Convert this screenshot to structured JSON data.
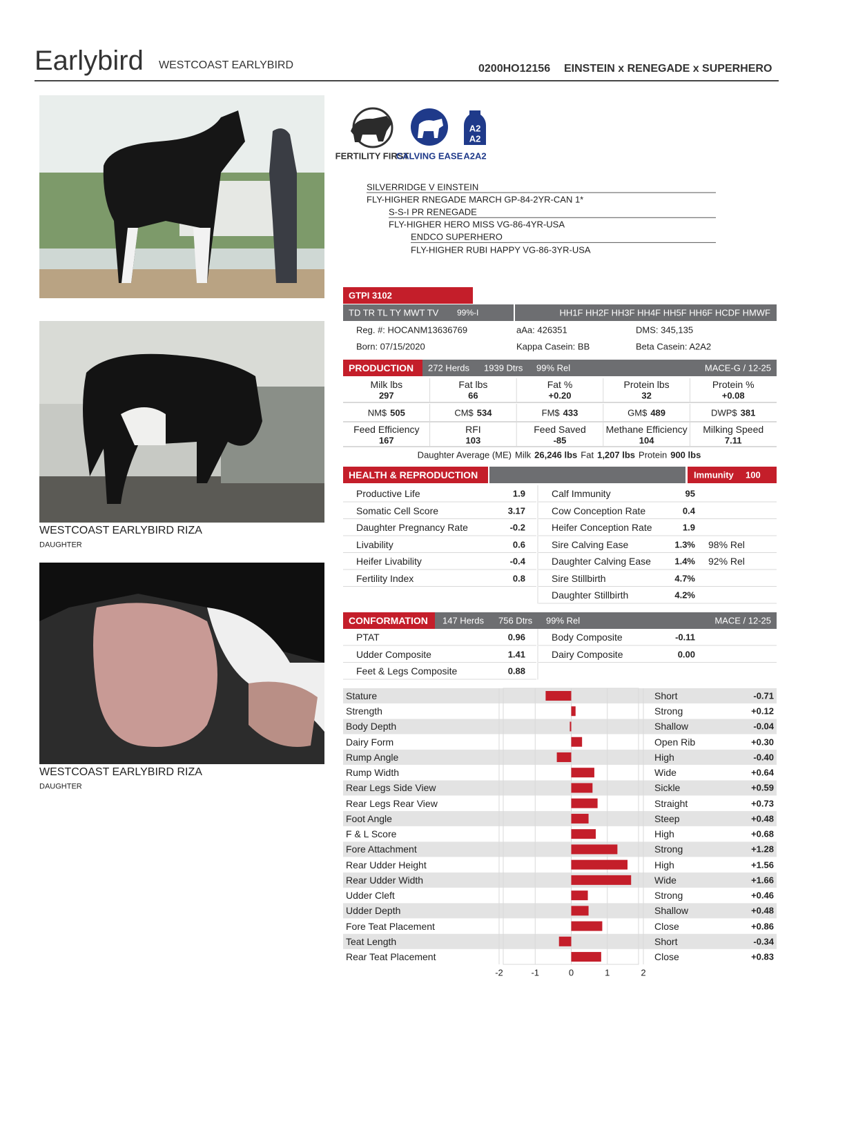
{
  "header": {
    "name": "Earlybird",
    "full_name": "WESTCOAST EARLYBIRD",
    "code": "0200HO12156",
    "pedigree": "EINSTEIN x RENEGADE x SUPERHERO"
  },
  "photos": [
    {
      "caption": "WESTCOAST EARLYBIRD RIZA",
      "subcaption": "DAUGHTER"
    },
    {
      "caption": "WESTCOAST EARLYBIRD RIZA",
      "subcaption": "DAUGHTER"
    }
  ],
  "badges": [
    {
      "label": "FERTILITY FIRST"
    },
    {
      "label": "CALVING EASE"
    },
    {
      "label": "A2A2",
      "icon_lines": [
        "A2",
        "A2"
      ]
    }
  ],
  "pedigree_lines": [
    "SILVERRIDGE V EINSTEIN",
    "FLY-HIGHER RNEGADE MARCH GP-84-2YR-CAN 1*",
    "S-S-I PR RENEGADE",
    "FLY-HIGHER HERO MISS VG-86-4YR-USA",
    "ENDCO SUPERHERO",
    "FLY-HIGHER RUBI HAPPY VG-86-3YR-USA"
  ],
  "gtpi": "GTPI 3102",
  "status_bar": {
    "traits": "TD TR TL TY MWT TV",
    "reliability": "99%-I",
    "haplotypes": "HH1F HH2F HH3F HH4F HH5F HH6F HCDF HMWF"
  },
  "info": [
    [
      "Reg. #: HOCANM13636769",
      "aAa: 426351",
      "DMS: 345,135"
    ],
    [
      "Born: 07/15/2020",
      "Kappa Casein: BB",
      "Beta Casein: A2A2"
    ]
  ],
  "production": {
    "title": "PRODUCTION",
    "herds": "272 Herds",
    "dtrs": "1939 Dtrs",
    "rel": "99% Rel",
    "source": "MACE-G / 12-25",
    "rows": [
      [
        {
          "label": "Milk lbs",
          "value": "297"
        },
        {
          "label": "Fat lbs",
          "value": "66"
        },
        {
          "label": "Fat %",
          "value": "+0.20"
        },
        {
          "label": "Protein lbs",
          "value": "32"
        },
        {
          "label": "Protein %",
          "value": "+0.08"
        }
      ],
      [
        {
          "label": "NM$",
          "value": "505"
        },
        {
          "label": "CM$",
          "value": "534"
        },
        {
          "label": "FM$",
          "value": "433"
        },
        {
          "label": "GM$",
          "value": "489"
        },
        {
          "label": "DWP$",
          "value": "381"
        }
      ],
      [
        {
          "label": "Feed Efficiency",
          "value": "167"
        },
        {
          "label": "RFI",
          "value": "103"
        },
        {
          "label": "Feed Saved",
          "value": "-85"
        },
        {
          "label": "Methane Efficiency",
          "value": "104"
        },
        {
          "label": "Milking Speed",
          "value": "7.11"
        }
      ]
    ],
    "daughter_average": {
      "label": "Daughter Average (ME)",
      "milk_label": "Milk",
      "milk": "26,246 lbs",
      "fat_label": "Fat",
      "fat": "1,207 lbs",
      "protein_label": "Protein",
      "protein": "900 lbs"
    }
  },
  "health": {
    "title": "HEALTH & REPRODUCTION",
    "immunity_label": "Immunity",
    "immunity_value": "100",
    "left": [
      {
        "label": "Productive Life",
        "value": "1.9"
      },
      {
        "label": "Somatic Cell Score",
        "value": "3.17"
      },
      {
        "label": "Daughter Pregnancy Rate",
        "value": "-0.2"
      },
      {
        "label": "Livability",
        "value": "0.6"
      },
      {
        "label": "Heifer Livability",
        "value": "-0.4"
      },
      {
        "label": "Fertility Index",
        "value": "0.8"
      }
    ],
    "right": [
      {
        "label": "Calf Immunity",
        "value": "95"
      },
      {
        "label": "Cow Conception Rate",
        "value": "0.4"
      },
      {
        "label": "Heifer Conception Rate",
        "value": "1.9"
      },
      {
        "label": "Sire Calving Ease",
        "value": "1.3%",
        "rel": "98% Rel"
      },
      {
        "label": "Daughter Calving Ease",
        "value": "1.4%",
        "rel": "92% Rel"
      },
      {
        "label": "Sire Stillbirth",
        "value": "4.7%"
      },
      {
        "label": "Daughter Stillbirth",
        "value": "4.2%"
      }
    ]
  },
  "conformation": {
    "title": "CONFORMATION",
    "herds": "147 Herds",
    "dtrs": "756 Dtrs",
    "rel": "99% Rel",
    "source": "MACE / 12-25",
    "left": [
      {
        "label": "PTAT",
        "value": "0.96"
      },
      {
        "label": "Udder Composite",
        "value": "1.41"
      },
      {
        "label": "Feet & Legs Composite",
        "value": "0.88"
      }
    ],
    "right": [
      {
        "label": "Body Composite",
        "value": "-0.11"
      },
      {
        "label": "Dairy Composite",
        "value": "0.00"
      }
    ]
  },
  "chart_data": {
    "type": "bar",
    "orientation": "horizontal",
    "categories": [
      "Stature",
      "Strength",
      "Body Depth",
      "Dairy Form",
      "Rump Angle",
      "Rump Width",
      "Rear Legs Side View",
      "Rear Legs Rear View",
      "Foot Angle",
      "F & L Score",
      "Fore Attachment",
      "Rear Udder Height",
      "Rear Udder Width",
      "Udder Cleft",
      "Udder Depth",
      "Fore Teat Placement",
      "Teat Length",
      "Rear Teat Placement"
    ],
    "descriptors": [
      "Short",
      "Strong",
      "Shallow",
      "Open Rib",
      "High",
      "Wide",
      "Sickle",
      "Straight",
      "Steep",
      "High",
      "Strong",
      "High",
      "Wide",
      "Strong",
      "Shallow",
      "Close",
      "Short",
      "Close"
    ],
    "values": [
      -0.71,
      0.12,
      -0.04,
      0.3,
      -0.4,
      0.64,
      0.59,
      0.73,
      0.48,
      0.68,
      1.28,
      1.56,
      1.66,
      0.46,
      0.48,
      0.86,
      -0.34,
      0.83
    ],
    "value_labels": [
      "-0.71",
      "+0.12",
      "-0.04",
      "+0.30",
      "-0.40",
      "+0.64",
      "+0.59",
      "+0.73",
      "+0.48",
      "+0.68",
      "+1.28",
      "+1.56",
      "+1.66",
      "+0.46",
      "+0.48",
      "+0.86",
      "-0.34",
      "+0.83"
    ],
    "xlim": [
      -2,
      2
    ],
    "xticks": [
      -2,
      -1,
      0,
      1,
      2
    ],
    "color": "#c41e2a",
    "grid": true
  }
}
